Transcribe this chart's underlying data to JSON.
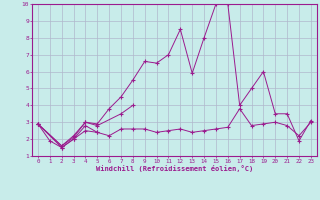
{
  "title": "",
  "xlabel": "Windchill (Refroidissement éolien,°C)",
  "bg_color": "#c8ecea",
  "line_color": "#9b1b8e",
  "grid_color": "#b0b8cc",
  "xlim": [
    -0.5,
    23.5
  ],
  "ylim": [
    1,
    10
  ],
  "xticks": [
    0,
    1,
    2,
    3,
    4,
    5,
    6,
    7,
    8,
    9,
    10,
    11,
    12,
    13,
    14,
    15,
    16,
    17,
    18,
    19,
    20,
    21,
    22,
    23
  ],
  "yticks": [
    1,
    2,
    3,
    4,
    5,
    6,
    7,
    8,
    9,
    10
  ],
  "series": [
    {
      "x": [
        0,
        1,
        2,
        3,
        4,
        5
      ],
      "y": [
        2.9,
        1.9,
        1.5,
        2.0,
        2.8,
        2.4
      ]
    },
    {
      "x": [
        0,
        2,
        3,
        4,
        5,
        6,
        7,
        8,
        9,
        10,
        11,
        12,
        13,
        14,
        15,
        16,
        17,
        18,
        19,
        20,
        21,
        22,
        23
      ],
      "y": [
        2.9,
        1.5,
        2.0,
        2.5,
        2.4,
        2.2,
        2.6,
        2.6,
        2.6,
        2.4,
        2.5,
        2.6,
        2.4,
        2.5,
        2.6,
        2.7,
        3.8,
        2.8,
        2.9,
        3.0,
        2.8,
        2.2,
        3.0
      ]
    },
    {
      "x": [
        0,
        2,
        3,
        4,
        5,
        7,
        8
      ],
      "y": [
        2.9,
        1.6,
        2.1,
        3.0,
        2.8,
        3.5,
        4.0
      ]
    },
    {
      "x": [
        0,
        2,
        3,
        4,
        5,
        6,
        7,
        8,
        9,
        10,
        11,
        12,
        13,
        14,
        15,
        16,
        17,
        18,
        19,
        20,
        21,
        22,
        23
      ],
      "y": [
        2.9,
        1.6,
        2.2,
        3.0,
        2.9,
        3.8,
        4.5,
        5.5,
        6.6,
        6.5,
        7.0,
        8.5,
        5.9,
        8.0,
        10.0,
        10.0,
        4.0,
        5.0,
        6.0,
        3.5,
        3.5,
        1.9,
        3.1
      ]
    }
  ]
}
